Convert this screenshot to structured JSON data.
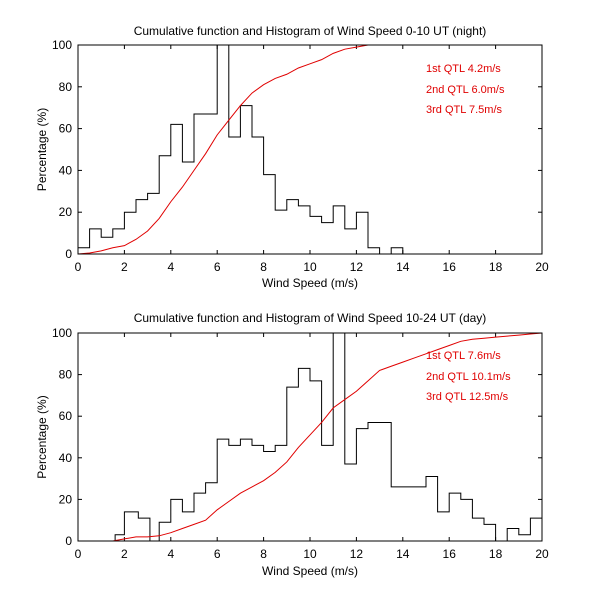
{
  "chart_data": [
    {
      "type": "step",
      "title": "Cumulative function and Histogram of Wind Speed 0-10 UT (night)",
      "xlabel": "Wind Speed (m/s)",
      "ylabel": "Percentage (%)",
      "xlim": [
        0,
        20
      ],
      "ylim": [
        0,
        100
      ],
      "xticks": [
        0,
        2,
        4,
        6,
        8,
        10,
        12,
        14,
        16,
        18,
        20
      ],
      "yticks": [
        0,
        20,
        40,
        60,
        80,
        100
      ],
      "annotations": [
        "1st QTL 4.2m/s",
        "2nd QTL 6.0m/s",
        "3rd QTL 7.5m/s"
      ],
      "series": [
        {
          "name": "histogram",
          "color": "#000000",
          "x": [
            0,
            0.5,
            1.0,
            1.5,
            2.0,
            2.5,
            3.0,
            3.5,
            4.0,
            4.5,
            5.0,
            5.5,
            6.0,
            6.5,
            7.0,
            7.5,
            8.0,
            8.5,
            9.0,
            9.5,
            10.0,
            10.5,
            11.0,
            11.5,
            12.0,
            12.5,
            13.0,
            13.5,
            14.0
          ],
          "y": [
            3,
            12,
            8,
            12,
            20,
            26,
            29,
            47,
            62,
            44,
            67,
            67,
            100,
            56,
            71,
            56,
            38,
            21,
            26,
            23,
            18,
            15,
            23,
            12,
            20,
            3,
            0,
            3,
            0
          ]
        },
        {
          "name": "cumulative",
          "color": "#e00000",
          "x": [
            0,
            0.5,
            1,
            1.5,
            2,
            2.5,
            3,
            3.5,
            4,
            4.5,
            5,
            5.5,
            6,
            6.5,
            7,
            7.5,
            8,
            8.5,
            9,
            9.5,
            10,
            10.5,
            11,
            11.5,
            12,
            12.5,
            13,
            20
          ],
          "y": [
            0,
            0.5,
            1.5,
            3,
            4,
            7,
            11,
            17,
            25,
            32,
            40,
            48,
            57,
            64,
            71,
            77,
            81,
            84,
            86,
            89,
            91,
            93,
            96,
            98,
            99,
            100,
            100,
            100
          ]
        }
      ]
    },
    {
      "type": "step",
      "title": "Cumulative function and Histogram of Wind Speed 10-24 UT (day)",
      "xlabel": "Wind Speed (m/s)",
      "ylabel": "Percentage (%)",
      "xlim": [
        0,
        20
      ],
      "ylim": [
        0,
        100
      ],
      "xticks": [
        0,
        2,
        4,
        6,
        8,
        10,
        12,
        14,
        16,
        18,
        20
      ],
      "yticks": [
        0,
        20,
        40,
        60,
        80,
        100
      ],
      "annotations": [
        "1st QTL 7.6m/s",
        "2nd QTL 10.1m/s",
        "3rd QTL 12.5m/s"
      ],
      "series": [
        {
          "name": "histogram",
          "color": "#000000",
          "x": [
            1.6,
            2.0,
            2.6,
            3.1,
            3.5,
            4.0,
            4.5,
            5.0,
            5.5,
            6.0,
            6.5,
            7.0,
            7.5,
            8.0,
            8.5,
            9.0,
            9.5,
            10.0,
            10.5,
            11.0,
            11.5,
            12.0,
            12.5,
            13.0,
            13.5,
            14.0,
            14.5,
            15.0,
            15.5,
            16.0,
            16.5,
            17.0,
            17.5,
            18.0,
            18.5,
            19.0,
            19.5,
            20.0
          ],
          "y": [
            3,
            14,
            11,
            0,
            9,
            20,
            14,
            23,
            28,
            49,
            46,
            49,
            46,
            43,
            46,
            74,
            83,
            77,
            46,
            100,
            37,
            54,
            57,
            57,
            26,
            26,
            26,
            31,
            14,
            23,
            20,
            11,
            8,
            0,
            6,
            3,
            11,
            0
          ]
        },
        {
          "name": "cumulative",
          "color": "#e00000",
          "x": [
            0,
            1.5,
            2,
            2.5,
            3,
            3.5,
            4,
            4.5,
            5,
            5.5,
            6,
            6.5,
            7,
            7.5,
            8,
            8.5,
            9,
            9.5,
            10,
            10.5,
            11,
            11.5,
            12,
            12.5,
            13,
            13.5,
            14,
            14.5,
            15,
            15.5,
            16,
            16.5,
            17,
            17.5,
            18,
            18.5,
            19,
            19.5,
            20
          ],
          "y": [
            0,
            0,
            1,
            2,
            2,
            2.5,
            4,
            6,
            8,
            10,
            15,
            19,
            23,
            26,
            29,
            33,
            38,
            45,
            51,
            57,
            64,
            68,
            72,
            77,
            82,
            84,
            86,
            88,
            90,
            92,
            94,
            96,
            97,
            97.5,
            98,
            98.5,
            99,
            99.5,
            100
          ]
        }
      ]
    }
  ]
}
